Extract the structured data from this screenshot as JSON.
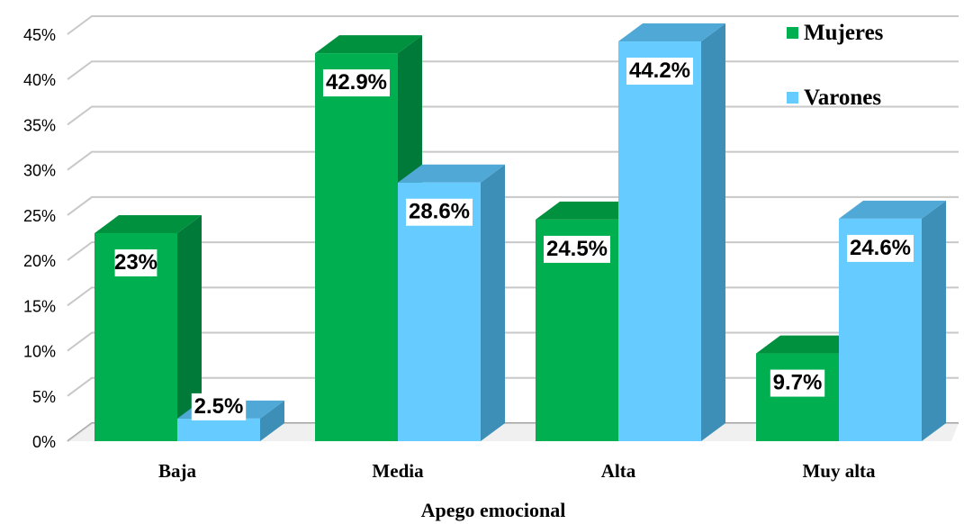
{
  "chart_data": {
    "type": "bar",
    "categories": [
      "Baja",
      "Media",
      "Alta",
      "Muy alta"
    ],
    "series": [
      {
        "name": "Mujeres",
        "values": [
          23,
          42.9,
          24.5,
          9.7
        ],
        "labels": [
          "23%",
          "42.9%",
          "24.5%",
          "9.7%"
        ]
      },
      {
        "name": "Varones",
        "values": [
          2.5,
          28.6,
          44.2,
          24.6
        ],
        "labels": [
          "2.5%",
          "28.6%",
          "44.2%",
          "24.6%"
        ]
      }
    ],
    "title": "",
    "xlabel": "Apego emocional",
    "ylabel": "",
    "ylim": [
      0,
      45
    ],
    "yticks": [
      "0%",
      "5%",
      "10%",
      "15%",
      "20%",
      "25%",
      "30%",
      "35%",
      "40%",
      "45%"
    ],
    "grid": true,
    "legend_position": "top-right",
    "style": "3d-columns"
  },
  "colors": {
    "Mujeres": {
      "front": "#00B050",
      "side": "#007A38",
      "top": "#00913F"
    },
    "Varones": {
      "front": "#66CCFF",
      "side": "#3D8FB8",
      "top": "#4FA8D6"
    },
    "grid": "#C8C8C8",
    "grid_dark": "#A0A0A0"
  }
}
